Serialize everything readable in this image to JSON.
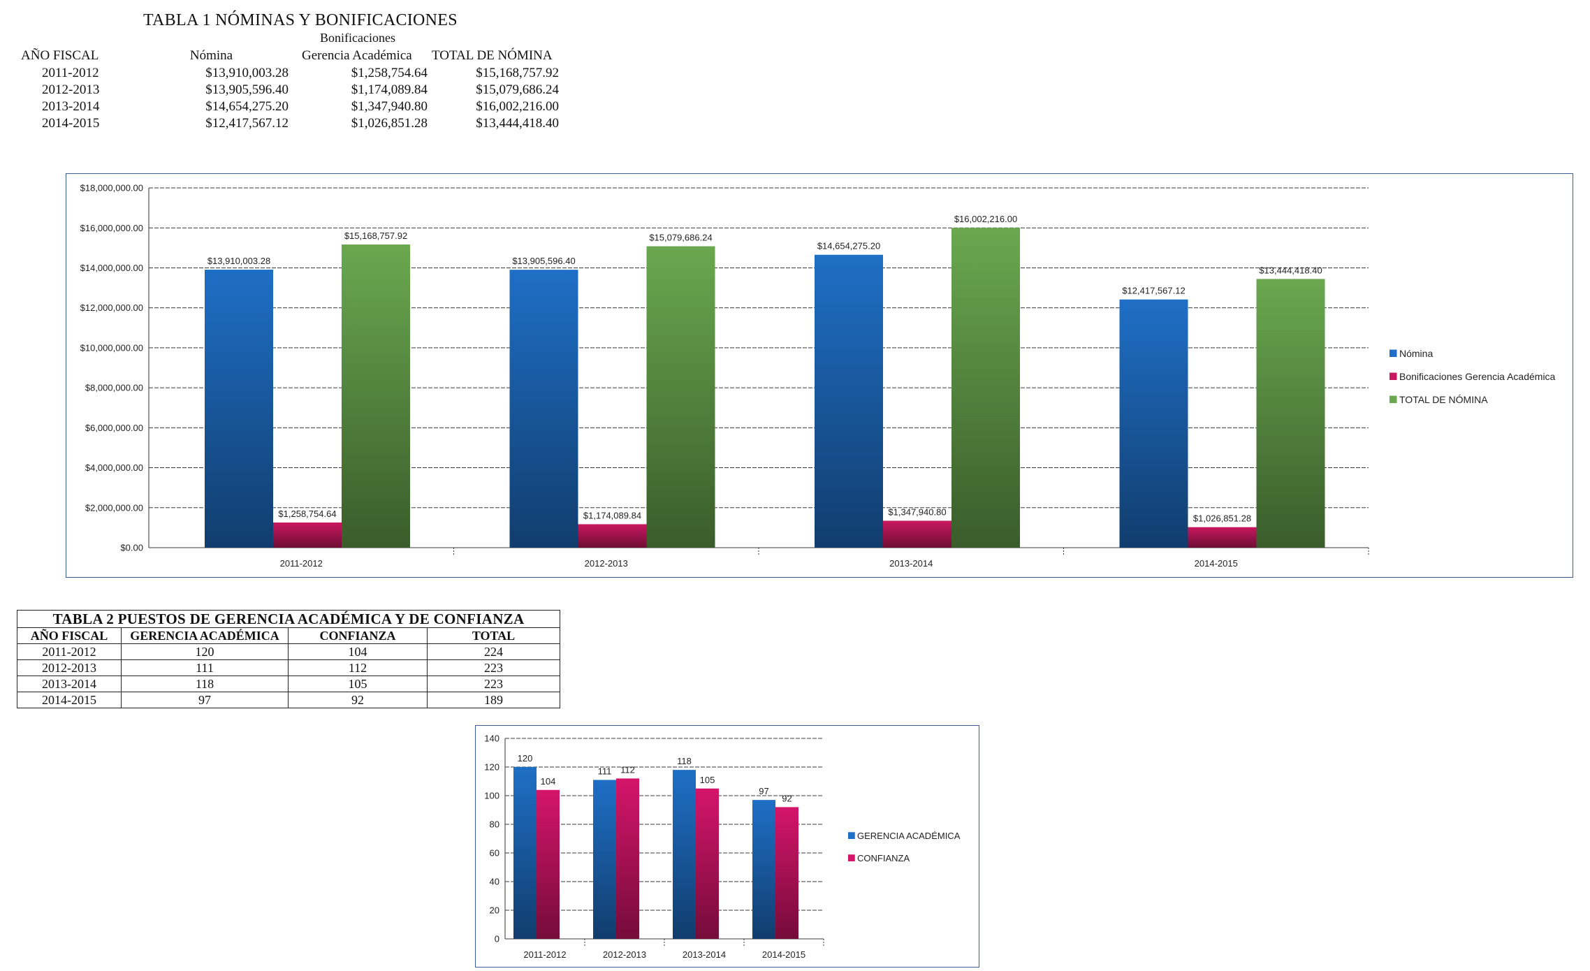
{
  "table1": {
    "title": "TABLA 1 NÓMINAS Y BONIFICACIONES",
    "group_header": "Bonificaciones",
    "headers": [
      "AÑO FISCAL",
      "Nómina",
      "Gerencia Académica",
      "TOTAL DE NÓMINA"
    ],
    "rows": [
      [
        "2011-2012",
        "$13,910,003.28",
        "$1,258,754.64",
        "$15,168,757.92"
      ],
      [
        "2012-2013",
        "$13,905,596.40",
        "$1,174,089.84",
        "$15,079,686.24"
      ],
      [
        "2013-2014",
        "$14,654,275.20",
        "$1,347,940.80",
        "$16,002,216.00"
      ],
      [
        "2014-2015",
        "$12,417,567.12",
        "$1,026,851.28",
        "$13,444,418.40"
      ]
    ]
  },
  "table2": {
    "title": "TABLA 2 PUESTOS DE GERENCIA ACADÉMICA Y DE CONFIANZA",
    "headers": [
      "AÑO FISCAL",
      "GERENCIA ACADÉMICA",
      "CONFIANZA",
      "TOTAL"
    ],
    "rows": [
      [
        "2011-2012",
        "120",
        "104",
        "224"
      ],
      [
        "2012-2013",
        "111",
        "112",
        "223"
      ],
      [
        "2013-2014",
        "118",
        "105",
        "223"
      ],
      [
        "2014-2015",
        "97",
        "92",
        "189"
      ]
    ]
  },
  "chart_data": [
    {
      "type": "bar",
      "categories": [
        "2011-2012",
        "2012-2013",
        "2013-2014",
        "2014-2015"
      ],
      "series": [
        {
          "name": "Nómina",
          "color": "#1f6fc6",
          "values": [
            13910003.28,
            13905596.4,
            14654275.2,
            12417567.12
          ],
          "labels": [
            "$13,910,003.28",
            "$13,905,596.40",
            "$14,654,275.20",
            "$12,417,567.12"
          ]
        },
        {
          "name": "Bonificaciones Gerencia Académica",
          "color": "#c8185f",
          "values": [
            1258754.64,
            1174089.84,
            1347940.8,
            1026851.28
          ],
          "labels": [
            "$1,258,754.64",
            "$1,174,089.84",
            "$1,347,940.80",
            "$1,026,851.28"
          ]
        },
        {
          "name": "TOTAL DE NÓMINA",
          "color": "#6aa84f",
          "values": [
            15168757.92,
            15079686.24,
            16002216.0,
            13444418.4
          ],
          "labels": [
            "$15,168,757.92",
            "$15,079,686.24",
            "$16,002,216.00",
            "$13,444,418.40"
          ]
        }
      ],
      "ylim": [
        0,
        18000000
      ],
      "yticks": [
        "$0.00",
        "$2,000,000.00",
        "$4,000,000.00",
        "$6,000,000.00",
        "$8,000,000.00",
        "$10,000,000.00",
        "$12,000,000.00",
        "$14,000,000.00",
        "$16,000,000.00",
        "$18,000,000.00"
      ],
      "legend_position": "right",
      "grid": true
    },
    {
      "type": "bar",
      "categories": [
        "2011-2012",
        "2012-2013",
        "2013-2014",
        "2014-2015"
      ],
      "series": [
        {
          "name": "GERENCIA ACADÉMICA",
          "color": "#1f6fc6",
          "values": [
            120,
            111,
            118,
            97
          ],
          "labels": [
            "120",
            "111",
            "118",
            "97"
          ]
        },
        {
          "name": "CONFIANZA",
          "color": "#d4156a",
          "values": [
            104,
            112,
            105,
            92
          ],
          "labels": [
            "104",
            "112",
            "105",
            "92"
          ]
        }
      ],
      "ylim": [
        0,
        140
      ],
      "yticks": [
        "0",
        "20",
        "40",
        "60",
        "80",
        "100",
        "120",
        "140"
      ],
      "legend_position": "right",
      "grid": true
    }
  ]
}
